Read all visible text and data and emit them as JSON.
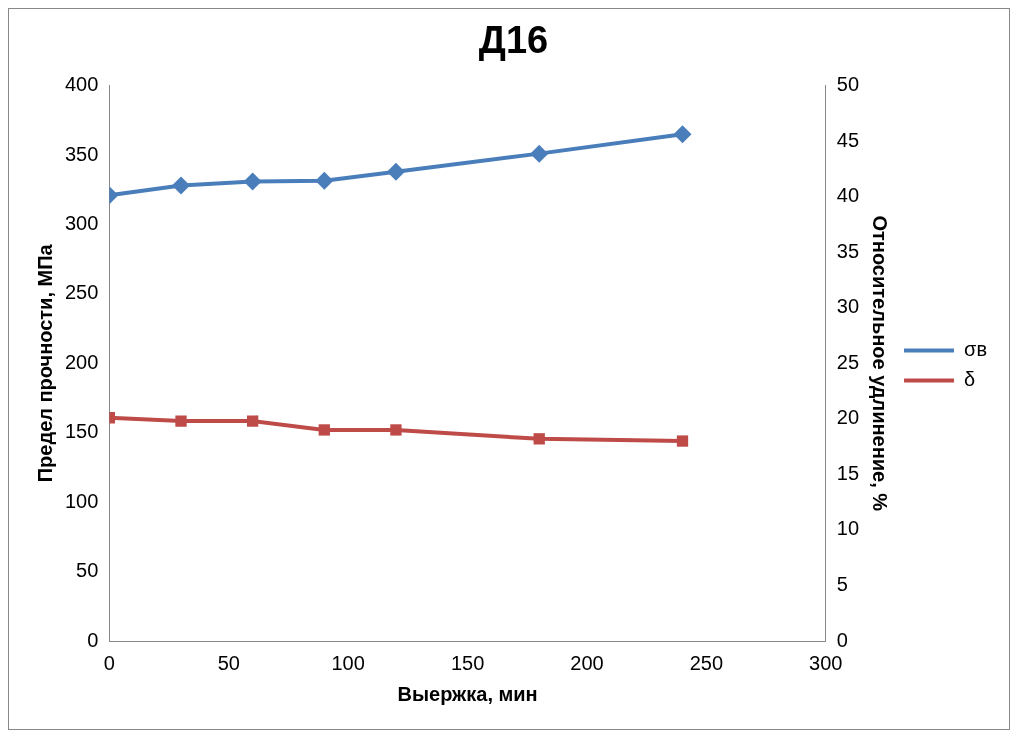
{
  "chart_data": {
    "type": "line",
    "title": "Д16",
    "xlabel": "Выержка, мин",
    "ylabel": "Предел прочности, МПа",
    "y2label": "Относительное удлинение, %",
    "x": [
      0,
      30,
      60,
      90,
      120,
      180,
      240
    ],
    "xlim": [
      0,
      300
    ],
    "xticks": [
      0,
      50,
      100,
      150,
      200,
      250,
      300
    ],
    "ylim": [
      0,
      400
    ],
    "yticks": [
      0,
      50,
      100,
      150,
      200,
      250,
      300,
      350,
      400
    ],
    "y2lim": [
      0,
      50
    ],
    "y2ticks": [
      0,
      5,
      10,
      15,
      20,
      25,
      30,
      35,
      40,
      45,
      50
    ],
    "grid": false,
    "legend": "right",
    "line_style": "solid",
    "series": [
      {
        "name": "σв",
        "color": "#4a7ebb",
        "marker": "diamond",
        "values": [
          321,
          328,
          331,
          331.5,
          338,
          351,
          365
        ]
      },
      {
        "name": "δ",
        "color": "#be4b48",
        "marker": "square",
        "axis": "y2",
        "values": [
          20.1,
          19.8,
          19.8,
          19.0,
          19.0,
          18.2,
          18.0
        ]
      }
    ]
  }
}
